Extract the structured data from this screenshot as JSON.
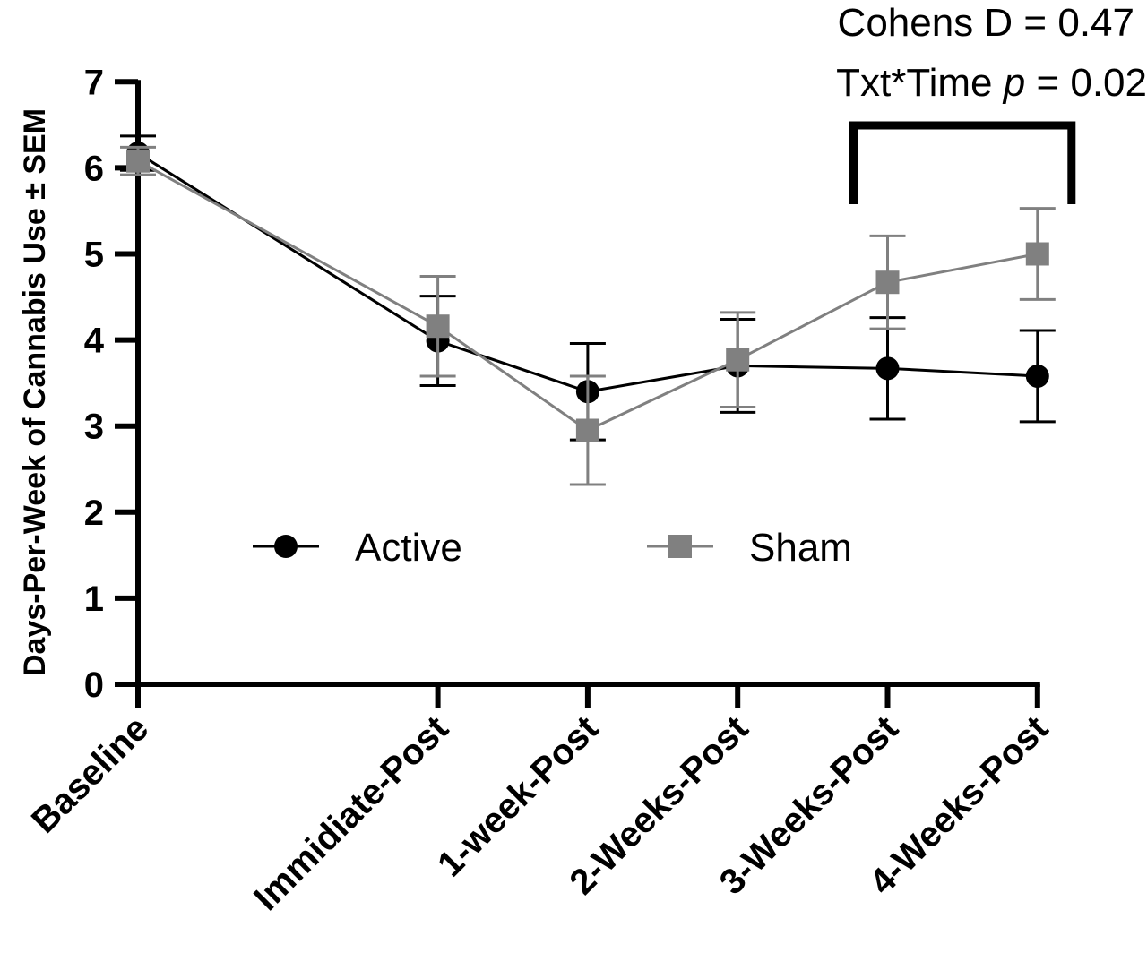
{
  "chart_data": {
    "type": "line",
    "categories": [
      "Baseline",
      "Immidiate-Post",
      "1-week-Post",
      "2-Weeks-Post",
      "3-Weeks-Post",
      "4-Weeks-Post"
    ],
    "x_positions": [
      0,
      2,
      3,
      4,
      5,
      6
    ],
    "ylabel": "Days-Per-Week of Cannabis Use ± SEM",
    "xlabel": "",
    "ylim": [
      0,
      7
    ],
    "yticks": [
      "0",
      "1",
      "2",
      "3",
      "4",
      "5",
      "6",
      "7"
    ],
    "grid": false,
    "legend_position": "center",
    "series": [
      {
        "name": "Active",
        "marker": "circle",
        "color": "#000000",
        "values": [
          6.17,
          3.99,
          3.4,
          3.7,
          3.67,
          3.58
        ],
        "sem": [
          0.2,
          0.52,
          0.56,
          0.54,
          0.59,
          0.53
        ]
      },
      {
        "name": "Sham",
        "marker": "square",
        "color": "#808080",
        "values": [
          6.08,
          4.16,
          2.95,
          3.77,
          4.67,
          5.0
        ],
        "sem": [
          0.16,
          0.58,
          0.63,
          0.55,
          0.54,
          0.53
        ]
      }
    ],
    "annotations": {
      "line1": "Cohens D = 0.47",
      "line2_prefix": "Txt*Time ",
      "line2_italic": "p",
      "line2_suffix": " = 0.02",
      "bracket_from": "3-Weeks-Post",
      "bracket_to": "4-Weeks-Post"
    }
  }
}
